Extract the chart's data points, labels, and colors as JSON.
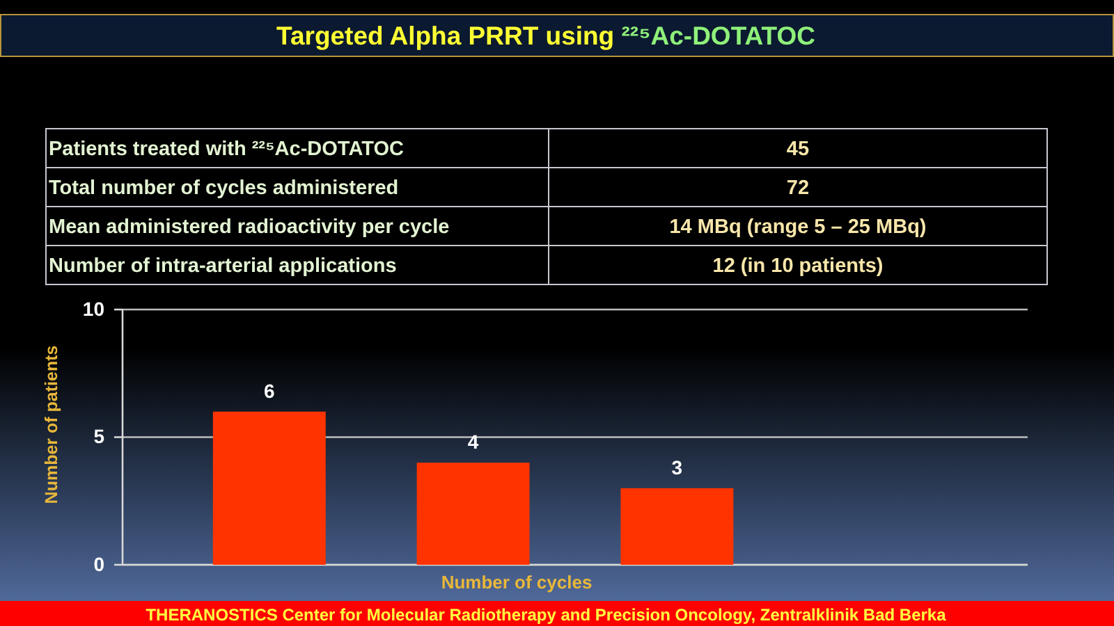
{
  "chart_data": [
    {
      "type": "other",
      "title": "Targeted Alpha PRRT using ²²⁵Ac-DOTATOC",
      "annotations": [
        "Patients treated with ²²⁵Ac-DOTATOC",
        "45",
        "Total number of cycles administered",
        "72",
        "Mean administered radioactivity per cycle",
        "14 MBq (range 5 – 25 MBq)",
        "Number of intra-arterial applications",
        "12 (in 10 patients)"
      ]
    },
    {
      "type": "bar",
      "categories": [
        null,
        null,
        null
      ],
      "values": [
        6,
        4,
        3
      ],
      "color": "#ff3300",
      "ylim": [
        0,
        10
      ],
      "yticks": [
        0,
        5,
        10
      ],
      "grid": "y",
      "data_labels": true,
      "xlabel": "Number of cycles",
      "ylabel": "Number of patients",
      "annotations": [
        "THERANOSTICS Center for Molecular Radiotherapy and Precision Oncology, Zentralklinik Bad Berka"
      ]
    }
  ]
}
